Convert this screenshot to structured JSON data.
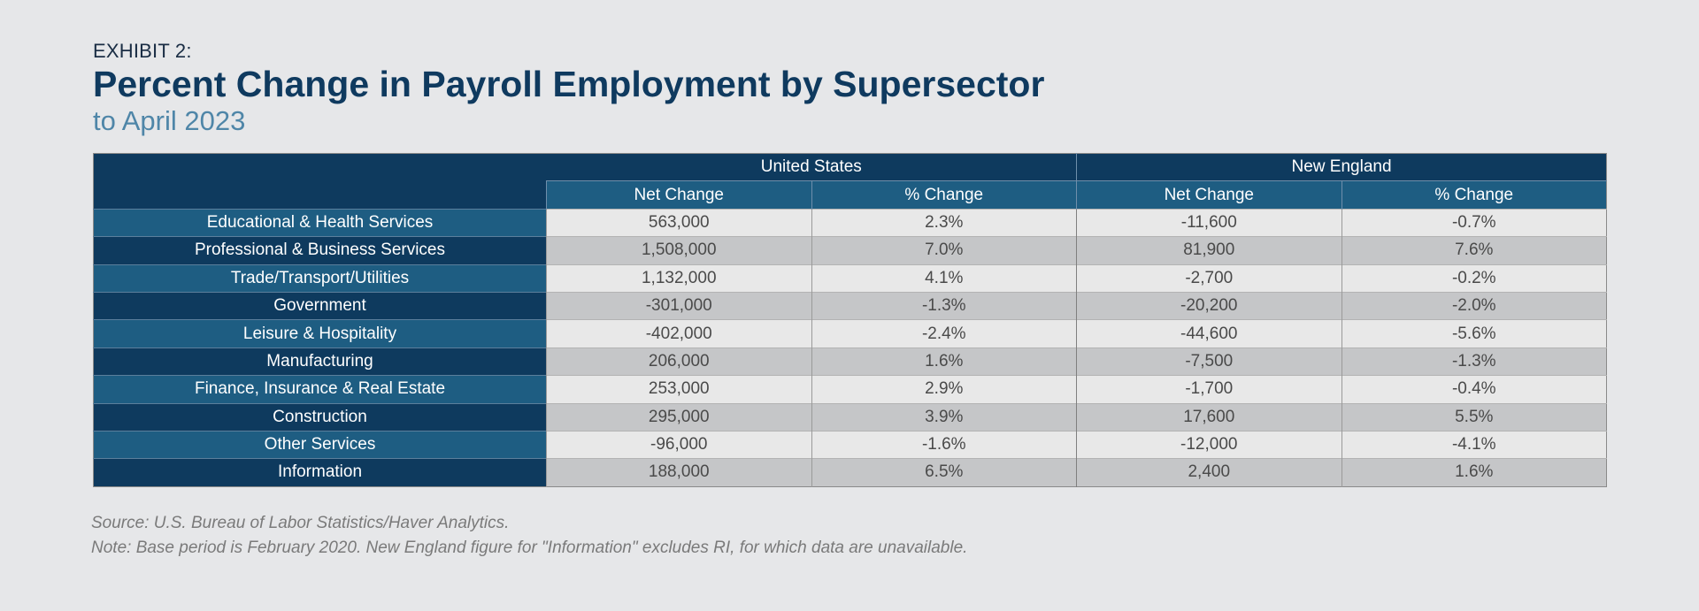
{
  "header": {
    "exhibit": "EXHIBIT 2:",
    "title": "Percent Change in Payroll Employment by Supersector",
    "subtitle": "to April 2023"
  },
  "chart_data": {
    "type": "table",
    "title": "Percent Change in Payroll Employment by Supersector",
    "subtitle": "to April 2023",
    "groups": [
      "United States",
      "New England"
    ],
    "subcolumns": [
      "Net Change",
      "% Change",
      "Net Change",
      "% Change"
    ],
    "rows": [
      {
        "label": "Educational & Health Services",
        "cells": [
          "563,000",
          "2.3%",
          "-11,600",
          "-0.7%"
        ]
      },
      {
        "label": "Professional & Business Services",
        "cells": [
          "1,508,000",
          "7.0%",
          "81,900",
          "7.6%"
        ]
      },
      {
        "label": "Trade/Transport/Utilities",
        "cells": [
          "1,132,000",
          "4.1%",
          "-2,700",
          "-0.2%"
        ]
      },
      {
        "label": "Government",
        "cells": [
          "-301,000",
          "-1.3%",
          "-20,200",
          "-2.0%"
        ]
      },
      {
        "label": "Leisure & Hospitality",
        "cells": [
          "-402,000",
          "-2.4%",
          "-44,600",
          "-5.6%"
        ]
      },
      {
        "label": "Manufacturing",
        "cells": [
          "206,000",
          "1.6%",
          "-7,500",
          "-1.3%"
        ]
      },
      {
        "label": "Finance, Insurance & Real Estate",
        "cells": [
          "253,000",
          "2.9%",
          "-1,700",
          "-0.4%"
        ]
      },
      {
        "label": "Construction",
        "cells": [
          "295,000",
          "3.9%",
          "17,600",
          "5.5%"
        ]
      },
      {
        "label": "Other Services",
        "cells": [
          "-96,000",
          "-1.6%",
          "-12,000",
          "-4.1%"
        ]
      },
      {
        "label": "Information",
        "cells": [
          "188,000",
          "6.5%",
          "2,400",
          "1.6%"
        ]
      }
    ]
  },
  "footer": {
    "source": "Source: U.S. Bureau of Labor Statistics/Haver Analytics.",
    "note": "Note: Base period is February 2020. New England figure for \"Information\" excludes RI, for which data are unavailable."
  },
  "colors": {
    "header_dark": "#0e3a5e",
    "header_mid": "#1e5d82",
    "row_light": "#e8e8e8",
    "row_dark": "#c5c6c8",
    "title": "#0f3a5f",
    "subtitle": "#4f86a8"
  }
}
